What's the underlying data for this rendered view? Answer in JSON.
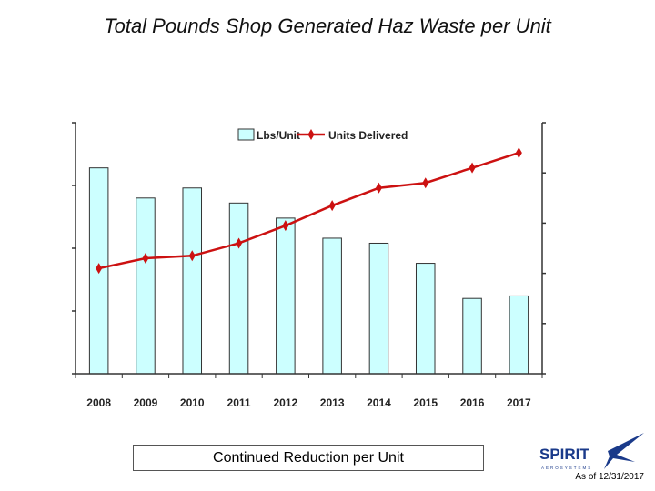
{
  "page": {
    "title": "Total Pounds Shop Generated Haz Waste per Unit",
    "caption": "Continued Reduction per Unit",
    "as_of": "As of 12/31/2017",
    "logo": {
      "word": "SPIRIT",
      "sub": "AEROSYSTEMS"
    }
  },
  "chart_data": {
    "type": "bar",
    "categories": [
      "2008",
      "2009",
      "2010",
      "2011",
      "2012",
      "2013",
      "2014",
      "2015",
      "2016",
      "2017"
    ],
    "series": [
      {
        "name": "Lbs/Unit",
        "kind": "bar",
        "axis": "left",
        "color": "#CCFFFF",
        "values": [
          8.2,
          7.0,
          7.4,
          6.8,
          6.2,
          5.4,
          5.2,
          4.4,
          3.0,
          3.1
        ]
      },
      {
        "name": "Units Delivered",
        "kind": "line",
        "axis": "right",
        "color": "#CC1111",
        "values": [
          2.1,
          2.3,
          2.35,
          2.6,
          2.95,
          3.35,
          3.7,
          3.8,
          4.1,
          4.4
        ]
      }
    ],
    "ylim": [
      0,
      10
    ],
    "y2lim": [
      0,
      5
    ],
    "legend": "top-center",
    "grid": false
  }
}
